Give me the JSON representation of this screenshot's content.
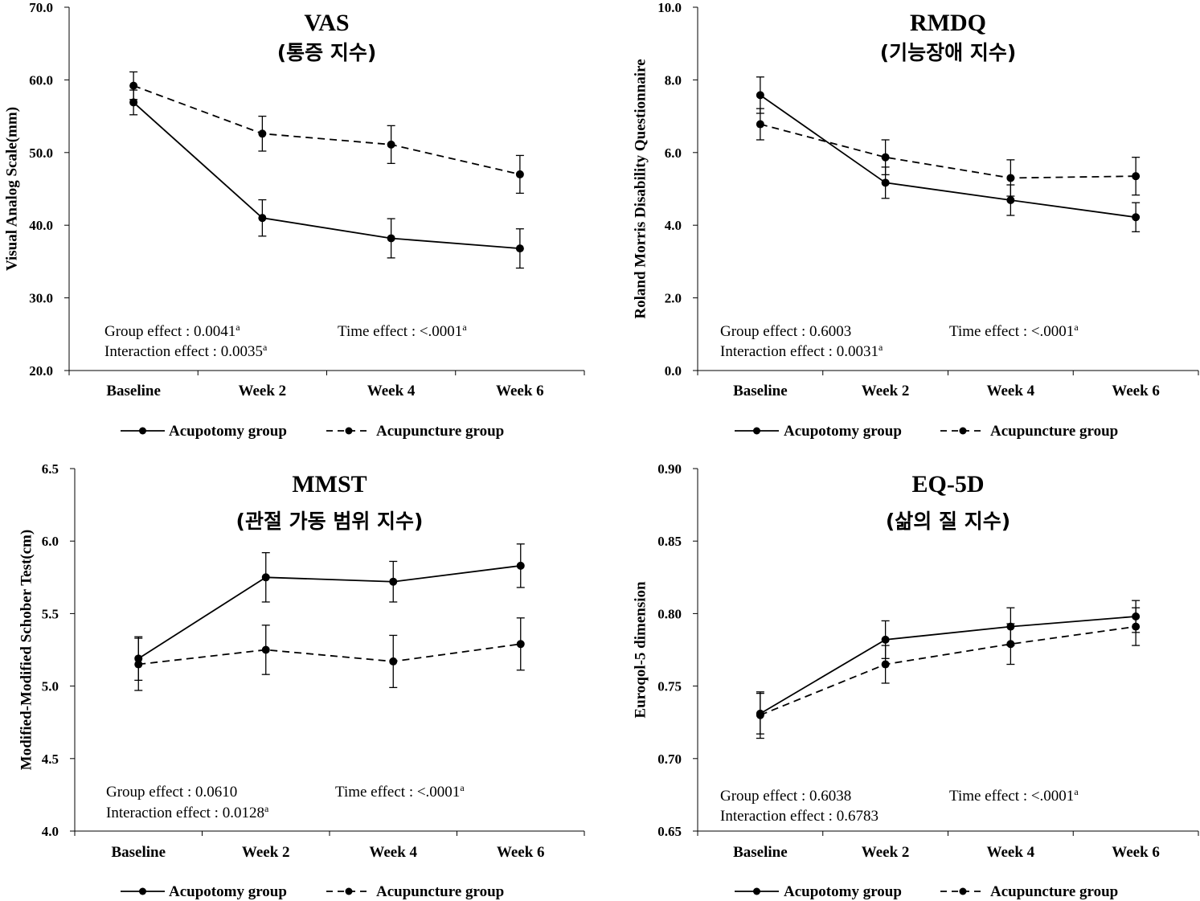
{
  "legend": {
    "series_a": "Acupotomy group",
    "series_b": "Acupuncture group"
  },
  "chart_data": [
    {
      "type": "line",
      "title": "VAS",
      "subtitle": "(통증 지수)",
      "ylabel": "Visual  Analog  Scale(mm)",
      "categories": [
        "Baseline",
        "Week 2",
        "Week 4",
        "Week 6"
      ],
      "ylim": [
        20,
        70
      ],
      "yticks": [
        "20.0",
        "30.0",
        "40.0",
        "50.0",
        "60.0",
        "70.0"
      ],
      "series": [
        {
          "name": "Acupotomy group",
          "style": "solid",
          "values": [
            56.9,
            41.0,
            38.2,
            36.8
          ],
          "error": [
            1.7,
            2.5,
            2.7,
            2.7
          ]
        },
        {
          "name": "Acupuncture group",
          "style": "dashed",
          "values": [
            59.2,
            52.6,
            51.1,
            47.0
          ],
          "error": [
            1.9,
            2.4,
            2.6,
            2.6
          ]
        }
      ],
      "stats": {
        "group": "Group effect : 0.0041",
        "group_sup": "a",
        "time": "Time effect : <.0001",
        "time_sup": "a",
        "interaction": "Interaction effect : 0.0035",
        "interaction_sup": "a"
      }
    },
    {
      "type": "line",
      "title": "RMDQ",
      "subtitle": "(기능장애 지수)",
      "ylabel": "Roland Morris Disability Questionnaire",
      "categories": [
        "Baseline",
        "Week 2",
        "Week 4",
        "Week 6"
      ],
      "ylim": [
        0,
        10
      ],
      "yticks": [
        "0.0",
        "2.0",
        "4.0",
        "6.0",
        "8.0",
        "10.0"
      ],
      "series": [
        {
          "name": "Acupotomy group",
          "style": "solid",
          "values": [
            7.58,
            5.17,
            4.69,
            4.22
          ],
          "error": [
            0.5,
            0.43,
            0.42,
            0.4
          ]
        },
        {
          "name": "Acupuncture group",
          "style": "dashed",
          "values": [
            6.78,
            5.87,
            5.3,
            5.35
          ],
          "error": [
            0.43,
            0.48,
            0.5,
            0.52
          ]
        }
      ],
      "stats": {
        "group": "Group effect : 0.6003",
        "group_sup": "",
        "time": "Time effect : <.0001",
        "time_sup": "a",
        "interaction": "Interaction effect : 0.0031",
        "interaction_sup": "a"
      }
    },
    {
      "type": "line",
      "title": "MMST",
      "subtitle": "(관절 가동 범위 지수)",
      "ylabel": "Modified-Modified Schober Test(cm)",
      "categories": [
        "Baseline",
        "Week 2",
        "Week 4",
        "Week 6"
      ],
      "ylim": [
        4.0,
        6.5
      ],
      "yticks": [
        "4.0",
        "4.5",
        "5.0",
        "5.5",
        "6.0",
        "6.5"
      ],
      "series": [
        {
          "name": "Acupotomy group",
          "style": "solid",
          "values": [
            5.19,
            5.75,
            5.72,
            5.83
          ],
          "error": [
            0.15,
            0.17,
            0.14,
            0.15
          ]
        },
        {
          "name": "Acupuncture group",
          "style": "dashed",
          "values": [
            5.15,
            5.25,
            5.17,
            5.29
          ],
          "error": [
            0.18,
            0.17,
            0.18,
            0.18
          ]
        }
      ],
      "stats": {
        "group": "Group effect : 0.0610",
        "group_sup": "",
        "time": "Time effect : <.0001",
        "time_sup": "a",
        "interaction": "Interaction effect : 0.0128",
        "interaction_sup": "a"
      }
    },
    {
      "type": "line",
      "title": "EQ-5D",
      "subtitle": "(삶의 질 지수)",
      "ylabel": "Euroqol-5 dimension",
      "categories": [
        "Baseline",
        "Week 2",
        "Week 4",
        "Week 6"
      ],
      "ylim": [
        0.65,
        0.9
      ],
      "yticks": [
        "0.65",
        "0.70",
        "0.75",
        "0.80",
        "0.85",
        "0.90"
      ],
      "series": [
        {
          "name": "Acupotomy group",
          "style": "solid",
          "values": [
            0.731,
            0.782,
            0.791,
            0.798
          ],
          "error": [
            0.014,
            0.013,
            0.013,
            0.011
          ]
        },
        {
          "name": "Acupuncture group",
          "style": "dashed",
          "values": [
            0.73,
            0.765,
            0.779,
            0.791
          ],
          "error": [
            0.016,
            0.013,
            0.014,
            0.013
          ]
        }
      ],
      "stats": {
        "group": "Group effect : 0.6038",
        "group_sup": "",
        "time": "Time effect : <.0001",
        "time_sup": "a",
        "interaction": "Interaction effect : 0.6783",
        "interaction_sup": ""
      }
    }
  ]
}
